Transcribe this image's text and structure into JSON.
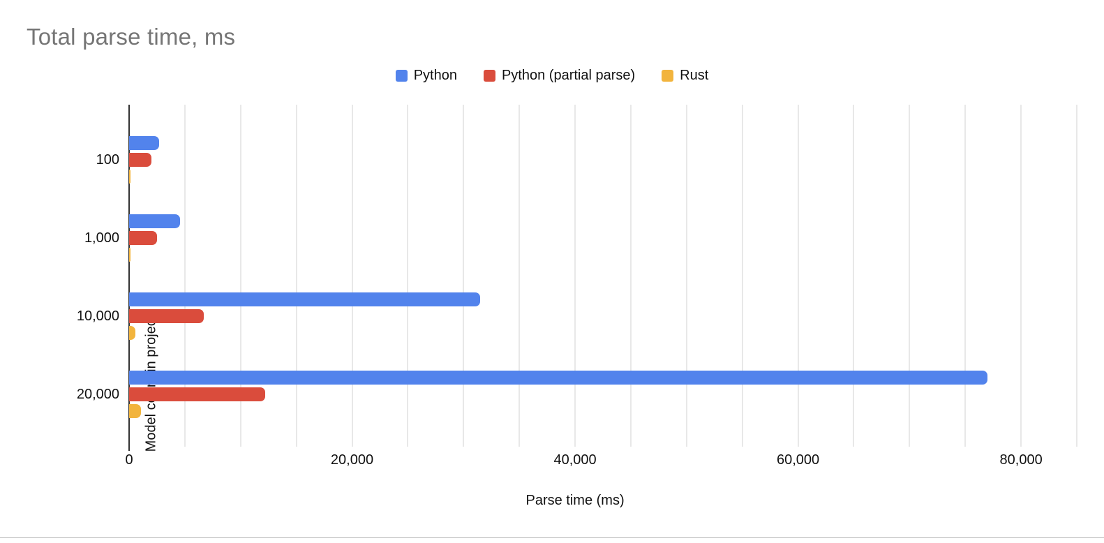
{
  "title": "Total parse time, ms",
  "axes": {
    "x": {
      "title": "Parse time (ms)",
      "min": 0,
      "max": 85000,
      "grid_step": 5000,
      "ticks": [
        {
          "value": 0,
          "label": "0"
        },
        {
          "value": 20000,
          "label": "20,000"
        },
        {
          "value": 40000,
          "label": "40,000"
        },
        {
          "value": 60000,
          "label": "60,000"
        },
        {
          "value": 80000,
          "label": "80,000"
        }
      ]
    },
    "y": {
      "title": "Model count in project",
      "categories": [
        "100",
        "1,000",
        "10,000",
        "20,000"
      ]
    }
  },
  "colors": {
    "title_text": "#757575",
    "axis_line": "#333333",
    "gridline": "#e8e8e8",
    "label_text": "#111111"
  },
  "chart_data": {
    "type": "bar",
    "orientation": "horizontal",
    "title": "Total parse time, ms",
    "xlabel": "Parse time (ms)",
    "ylabel": "Model count in project",
    "xlim": [
      0,
      85000
    ],
    "grid_step": 5000,
    "label_step": 20000,
    "legend_position": "top",
    "grid": true,
    "categories": [
      "100",
      "1,000",
      "10,000",
      "20,000"
    ],
    "series": [
      {
        "name": "Python",
        "color": "#5283ec",
        "values": [
          2700,
          4600,
          31500,
          77000
        ]
      },
      {
        "name": "Python (partial parse)",
        "color": "#da4c3c",
        "values": [
          2000,
          2500,
          6700,
          12200
        ]
      },
      {
        "name": "Rust",
        "color": "#f2b43d",
        "values": [
          50,
          80,
          560,
          1080
        ]
      }
    ]
  },
  "legend": [
    {
      "label": "Python",
      "color": "#5283ec"
    },
    {
      "label": "Python (partial parse)",
      "color": "#da4c3c"
    },
    {
      "label": "Rust",
      "color": "#f2b43d"
    }
  ]
}
